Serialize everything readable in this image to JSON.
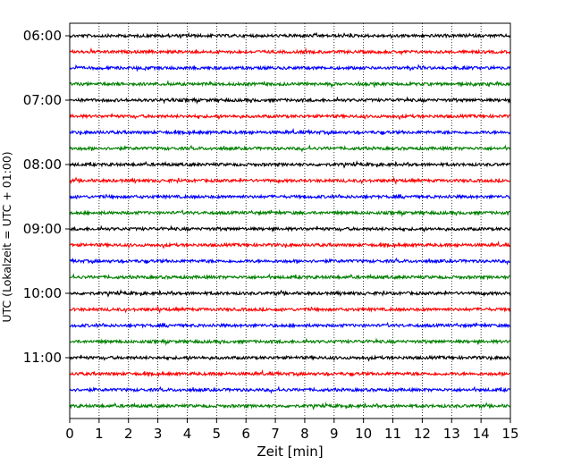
{
  "chart_data": {
    "type": "line",
    "title": "",
    "xlabel": "Zeit  [min]",
    "ylabel": "UTC (Lokalzeit = UTC + 01:00)",
    "xlim": [
      0,
      15
    ],
    "x_ticks": [
      0,
      1,
      2,
      3,
      4,
      5,
      6,
      7,
      8,
      9,
      10,
      11,
      12,
      13,
      14,
      15
    ],
    "x_tick_labels": [
      "0",
      "1",
      "2",
      "3",
      "4",
      "5",
      "6",
      "7",
      "8",
      "9",
      "10",
      "11",
      "12",
      "13",
      "14",
      "15"
    ],
    "y_tick_labels": [
      {
        "label": "06:00",
        "trace_index": 0
      },
      {
        "label": "07:00",
        "trace_index": 4
      },
      {
        "label": "08:00",
        "trace_index": 8
      },
      {
        "label": "09:00",
        "trace_index": 12
      },
      {
        "label": "10:00",
        "trace_index": 16
      },
      {
        "label": "11:00",
        "trace_index": 20
      }
    ],
    "trace_count": 24,
    "trace_start": "06:00",
    "trace_interval_minutes": 15,
    "trace_colors": [
      "#000000",
      "#ff0000",
      "#0000ff",
      "#008000"
    ],
    "grid": "vertical dotted",
    "legend": "none"
  }
}
